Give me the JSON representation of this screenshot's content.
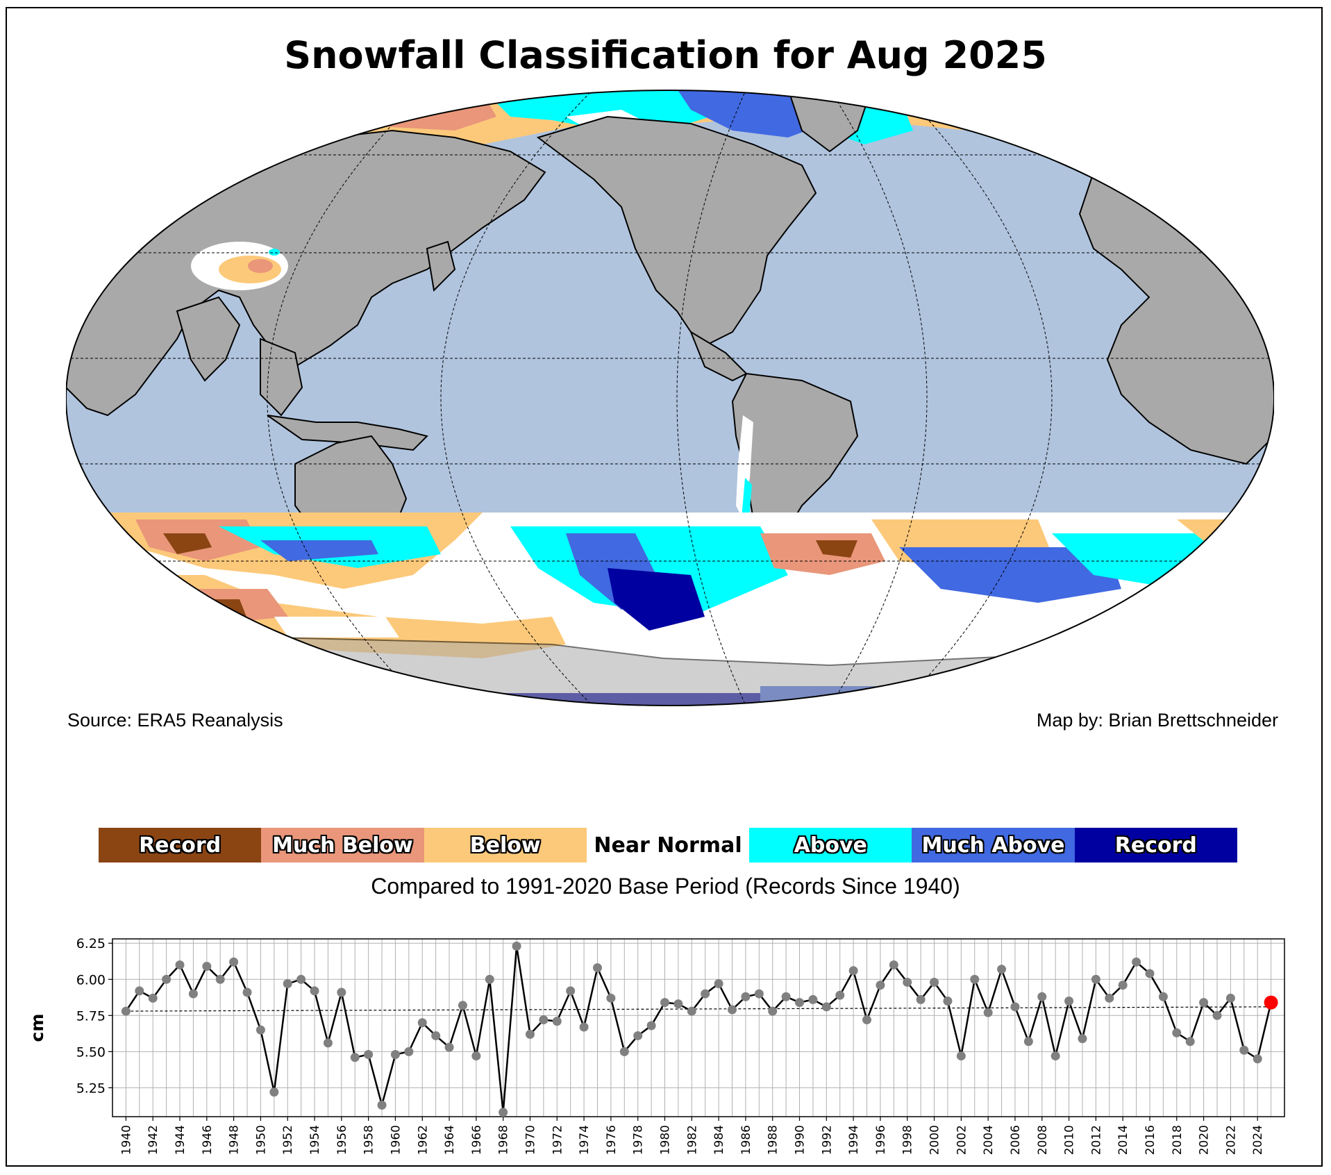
{
  "title": "Snowfall Classification for Aug 2025",
  "source": "Source: ERA5 Reanalysis",
  "credit": "Map by: Brian Brettschneider",
  "base_period": "Compared to 1991-2020 Base Period   (Records Since 1940)",
  "colors": {
    "ocean": "#b0c4de",
    "land": "#a9a9a9",
    "record_low": "#8b4513",
    "much_below": "#e9967a",
    "below": "#fcc97a",
    "near_normal": "#ffffff",
    "above": "#00ffff",
    "much_above": "#4169e1",
    "record_high": "#0000a0",
    "highlight": "#ff0000"
  },
  "legend": [
    {
      "label": "Record",
      "color": "#8b4513",
      "outlined": true
    },
    {
      "label": "Much Below",
      "color": "#e9967a",
      "outlined": true
    },
    {
      "label": "Below",
      "color": "#fcc97a",
      "outlined": true
    },
    {
      "label": "Near Normal",
      "color": "#ffffff",
      "outlined": false
    },
    {
      "label": "Above",
      "color": "#00ffff",
      "outlined": true
    },
    {
      "label": "Much Above",
      "color": "#4169e1",
      "outlined": true
    },
    {
      "label": "Record",
      "color": "#0000a0",
      "outlined": true
    }
  ],
  "chart_data": {
    "type": "line",
    "title": "",
    "xlabel": "",
    "ylabel": "cm",
    "ylim": [
      5.05,
      6.28
    ],
    "xlim": [
      1939,
      2026
    ],
    "yticks": [
      "6.25",
      "6.00",
      "5.75",
      "5.50",
      "5.25"
    ],
    "ytick_values": [
      6.25,
      6.0,
      5.75,
      5.5,
      5.25
    ],
    "xticks": [
      "1940",
      "1942",
      "1944",
      "1946",
      "1948",
      "1950",
      "1952",
      "1954",
      "1956",
      "1958",
      "1960",
      "1962",
      "1964",
      "1966",
      "1968",
      "1970",
      "1972",
      "1974",
      "1976",
      "1978",
      "1980",
      "1982",
      "1984",
      "1986",
      "1988",
      "1990",
      "1992",
      "1994",
      "1996",
      "1998",
      "2000",
      "2002",
      "2004",
      "2006",
      "2008",
      "2010",
      "2012",
      "2014",
      "2016",
      "2018",
      "2020",
      "2022",
      "2024"
    ],
    "grid": true,
    "x": [
      1940,
      1941,
      1942,
      1943,
      1944,
      1945,
      1946,
      1947,
      1948,
      1949,
      1950,
      1951,
      1952,
      1953,
      1954,
      1955,
      1956,
      1957,
      1958,
      1959,
      1960,
      1961,
      1962,
      1963,
      1964,
      1965,
      1966,
      1967,
      1968,
      1969,
      1970,
      1971,
      1972,
      1973,
      1974,
      1975,
      1976,
      1977,
      1978,
      1979,
      1980,
      1981,
      1982,
      1983,
      1984,
      1985,
      1986,
      1987,
      1988,
      1989,
      1990,
      1991,
      1992,
      1993,
      1994,
      1995,
      1996,
      1997,
      1998,
      1999,
      2000,
      2001,
      2002,
      2003,
      2004,
      2005,
      2006,
      2007,
      2008,
      2009,
      2010,
      2011,
      2012,
      2013,
      2014,
      2015,
      2016,
      2017,
      2018,
      2019,
      2020,
      2021,
      2022,
      2023,
      2024,
      2025
    ],
    "values": [
      5.78,
      5.92,
      5.87,
      6.0,
      6.1,
      5.9,
      6.09,
      6.0,
      6.12,
      5.91,
      5.65,
      5.22,
      5.97,
      6.0,
      5.92,
      5.56,
      5.91,
      5.46,
      5.48,
      5.13,
      5.48,
      5.5,
      5.7,
      5.61,
      5.53,
      5.82,
      5.47,
      6.0,
      5.08,
      6.23,
      5.62,
      5.72,
      5.71,
      5.92,
      5.67,
      6.08,
      5.87,
      5.5,
      5.61,
      5.68,
      5.84,
      5.83,
      5.78,
      5.9,
      5.97,
      5.79,
      5.88,
      5.9,
      5.78,
      5.88,
      5.84,
      5.86,
      5.81,
      5.89,
      6.06,
      5.72,
      5.96,
      6.1,
      5.98,
      5.86,
      5.98,
      5.85,
      5.47,
      6.0,
      5.77,
      6.07,
      5.81,
      5.57,
      5.88,
      5.47,
      5.85,
      5.59,
      6.0,
      5.87,
      5.96,
      6.12,
      6.04,
      5.88,
      5.63,
      5.57,
      5.84,
      5.75,
      5.87,
      5.51,
      5.45,
      5.84
    ],
    "trend": {
      "start": [
        1940,
        5.78
      ],
      "end": [
        2025,
        5.81
      ]
    },
    "highlight_year": 2025
  }
}
